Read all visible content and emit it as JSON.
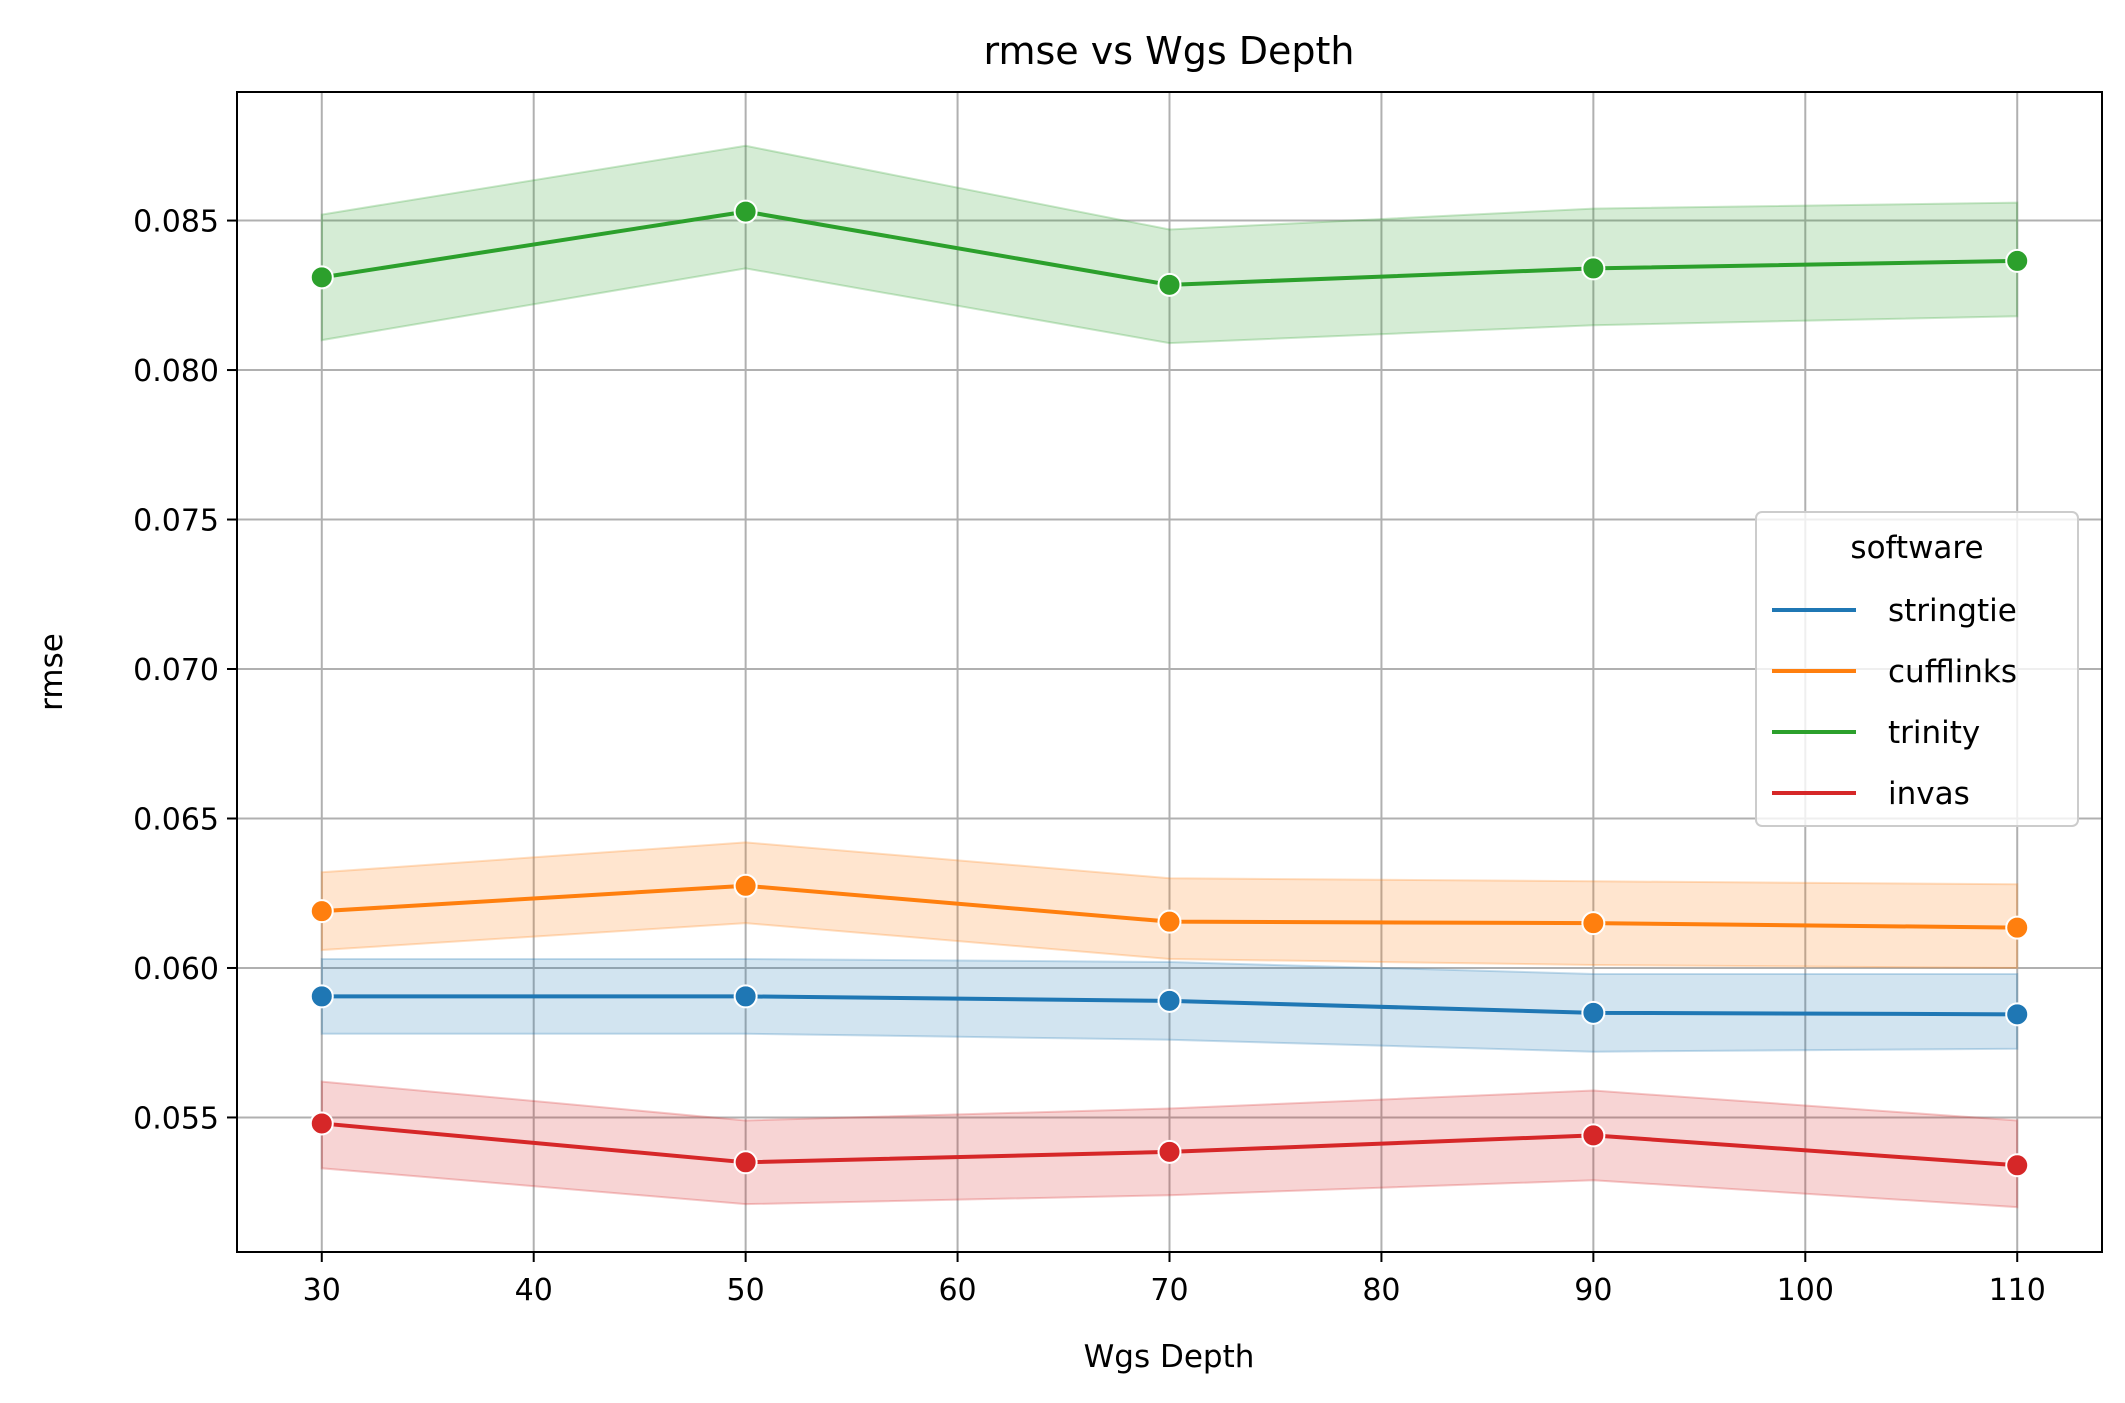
{
  "chart_data": {
    "type": "line",
    "title": "rmse vs Wgs Depth",
    "xlabel": "Wgs Depth",
    "ylabel": "rmse",
    "x": [
      30,
      50,
      70,
      90,
      110
    ],
    "xticks": [
      30,
      40,
      50,
      60,
      70,
      80,
      90,
      100,
      110
    ],
    "yticks": [
      0.055,
      0.06,
      0.065,
      0.07,
      0.075,
      0.08,
      0.085
    ],
    "xlim": [
      26,
      114
    ],
    "ylim": [
      0.0505,
      0.0893
    ],
    "grid": true,
    "legend": {
      "title": "software",
      "placement": "center-right"
    },
    "series": [
      {
        "name": "stringtie",
        "color": "#1f77b4",
        "values": [
          0.05905,
          0.05905,
          0.0589,
          0.0585,
          0.05845
        ],
        "ci_low": [
          0.0578,
          0.0578,
          0.0576,
          0.0572,
          0.0573
        ],
        "ci_high": [
          0.0603,
          0.0603,
          0.0602,
          0.0598,
          0.0598
        ]
      },
      {
        "name": "cufflinks",
        "color": "#ff7f0e",
        "values": [
          0.0619,
          0.06275,
          0.06155,
          0.0615,
          0.06135
        ],
        "ci_low": [
          0.0606,
          0.0615,
          0.0603,
          0.0601,
          0.06
        ],
        "ci_high": [
          0.0632,
          0.0642,
          0.063,
          0.0629,
          0.0628
        ]
      },
      {
        "name": "trinity",
        "color": "#2ca02c",
        "values": [
          0.0831,
          0.0853,
          0.08285,
          0.0834,
          0.08365
        ],
        "ci_low": [
          0.081,
          0.0834,
          0.0809,
          0.0815,
          0.0818
        ],
        "ci_high": [
          0.0852,
          0.0875,
          0.0847,
          0.0854,
          0.0856
        ]
      },
      {
        "name": "invas",
        "color": "#d62728",
        "values": [
          0.0548,
          0.0535,
          0.05385,
          0.0544,
          0.0534
        ],
        "ci_low": [
          0.0533,
          0.0521,
          0.0524,
          0.0529,
          0.052
        ],
        "ci_high": [
          0.0562,
          0.0549,
          0.0553,
          0.0559,
          0.0549
        ]
      }
    ]
  }
}
